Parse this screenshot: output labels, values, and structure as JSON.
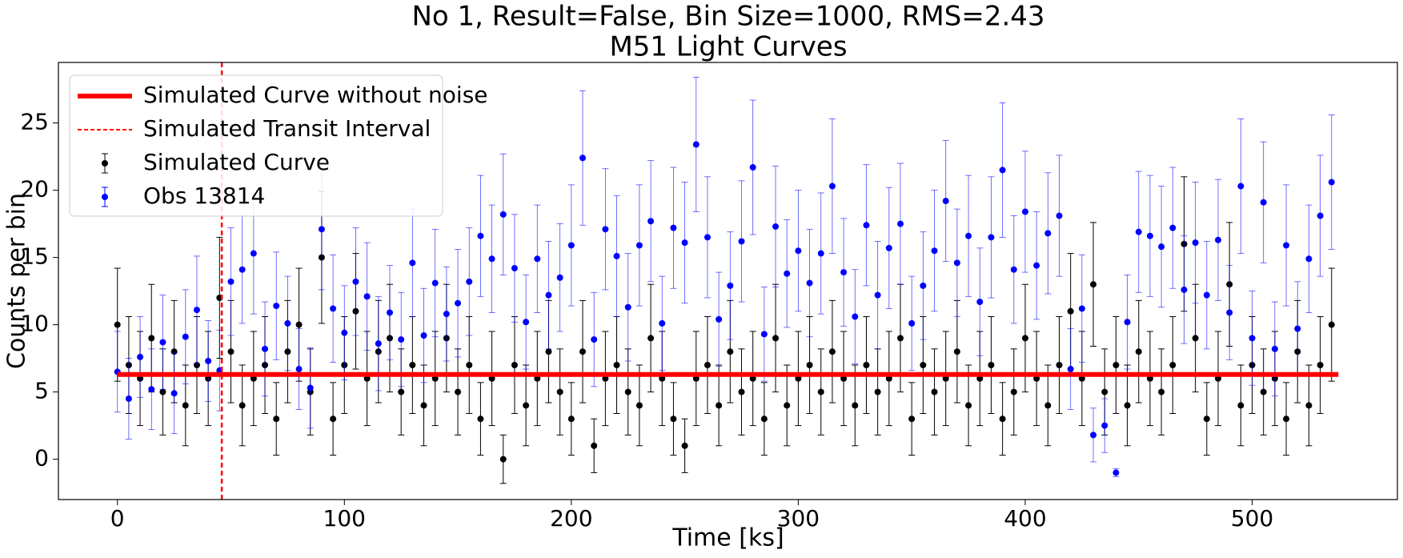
{
  "chart_data": {
    "type": "errorbar",
    "title": "No 1, Result=False, Bin Size=1000, RMS=2.43",
    "subtitle": "M51 Light Curves",
    "xlabel": "Time [ks]",
    "ylabel": "Counts per bin",
    "xlim": [
      -26,
      564
    ],
    "ylim": [
      -3,
      29.5
    ],
    "xticks": [
      0,
      100,
      200,
      300,
      400,
      500
    ],
    "yticks": [
      0,
      5,
      10,
      15,
      20,
      25
    ],
    "legend": "upper left",
    "x": [
      0,
      5,
      10,
      15,
      20,
      25,
      30,
      35,
      40,
      45,
      50,
      55,
      60,
      65,
      70,
      75,
      80,
      85,
      90,
      95,
      100,
      105,
      110,
      115,
      120,
      125,
      130,
      135,
      140,
      145,
      150,
      155,
      160,
      165,
      170,
      175,
      180,
      185,
      190,
      195,
      200,
      205,
      210,
      215,
      220,
      225,
      230,
      235,
      240,
      245,
      250,
      255,
      260,
      265,
      270,
      275,
      280,
      285,
      290,
      295,
      300,
      305,
      310,
      315,
      320,
      325,
      330,
      335,
      340,
      345,
      350,
      355,
      360,
      365,
      370,
      375,
      380,
      385,
      390,
      395,
      400,
      405,
      410,
      415,
      420,
      425,
      430,
      435,
      440,
      445,
      450,
      455,
      460,
      465,
      470,
      475,
      480,
      485,
      490,
      495,
      500,
      505,
      510,
      515,
      520,
      525,
      530,
      535
    ],
    "series": [
      {
        "name": "Simulated Curve without noise",
        "style": "line",
        "color": "#ff0000",
        "x": [
          0,
          538
        ],
        "values": [
          6.3,
          6.3
        ]
      },
      {
        "name": "Simulated Curve",
        "style": "errorbar",
        "color": "#000000",
        "values": [
          10,
          7,
          6,
          9,
          5,
          8,
          4,
          7,
          6,
          12,
          8,
          4,
          6,
          7,
          3,
          8,
          10,
          5,
          15,
          3,
          7,
          11,
          6,
          8,
          9,
          5,
          7,
          4,
          6,
          9,
          5,
          7,
          3,
          6,
          0,
          7,
          4,
          6,
          8,
          5,
          3,
          8,
          1,
          6,
          7,
          5,
          4,
          9,
          6,
          3,
          1,
          6,
          7,
          4,
          8,
          5,
          6,
          3,
          9,
          4,
          6,
          7,
          5,
          8,
          6,
          4,
          7,
          5,
          6,
          9,
          3,
          7,
          5,
          6,
          8,
          4,
          6,
          7,
          3,
          5,
          9,
          6,
          4,
          7,
          11,
          6,
          13,
          5,
          7,
          4,
          8,
          6,
          5,
          7,
          16,
          9,
          3,
          6,
          13,
          4,
          7,
          5,
          6,
          3,
          8,
          4,
          7,
          10
        ],
        "errors": [
          4.2,
          3.6,
          3.5,
          4,
          3.2,
          3.8,
          3,
          3.6,
          3.5,
          4.5,
          3.8,
          3,
          3.5,
          3.6,
          2.7,
          3.8,
          4.2,
          3.2,
          4.9,
          2.7,
          3.6,
          4.3,
          3.5,
          3.8,
          4,
          3.2,
          3.6,
          3,
          3.5,
          4,
          3.2,
          3.6,
          2.7,
          3.5,
          1.8,
          3.6,
          3,
          3.5,
          3.8,
          3.2,
          2.7,
          3.8,
          2,
          3.5,
          3.6,
          3.2,
          3,
          4,
          3.5,
          2.7,
          2,
          3.5,
          3.6,
          3,
          3.8,
          3.2,
          3.5,
          2.7,
          4,
          3,
          3.5,
          3.6,
          3.2,
          3.8,
          3.5,
          3,
          3.6,
          3.2,
          3.5,
          4,
          2.7,
          3.6,
          3.2,
          3.5,
          3.8,
          3,
          3.5,
          3.6,
          2.7,
          3.2,
          4,
          3.5,
          3,
          3.6,
          4.3,
          3.5,
          4.6,
          3.2,
          3.6,
          3,
          3.8,
          3.5,
          3.2,
          3.6,
          5,
          4,
          2.7,
          3.5,
          4.6,
          3,
          3.6,
          3.2,
          3.5,
          2.7,
          3.8,
          3,
          3.6,
          4.2
        ]
      },
      {
        "name": "Obs 13814",
        "style": "errorbar",
        "color": "#0000ff",
        "values": [
          6.5,
          4.5,
          7.6,
          5.2,
          8.7,
          4.9,
          9.1,
          11.1,
          7.3,
          6.6,
          13.2,
          14.1,
          15.3,
          8.2,
          11.4,
          10.1,
          6.7,
          5.3,
          17.1,
          11.2,
          9.4,
          13.2,
          12.1,
          8.6,
          10.9,
          8.9,
          14.6,
          9.2,
          13.1,
          10.8,
          11.6,
          13.2,
          16.6,
          14.9,
          18.2,
          14.2,
          10.2,
          14.9,
          12.2,
          13.5,
          15.9,
          22.4,
          8.9,
          17.1,
          15.1,
          11.3,
          15.9,
          17.7,
          10.1,
          17.2,
          16.1,
          23.4,
          16.5,
          10.4,
          12.9,
          16.2,
          21.7,
          9.3,
          17.3,
          13.8,
          15.5,
          13.1,
          15.3,
          20.3,
          13.9,
          10.6,
          17.4,
          12.2,
          15.7,
          17.5,
          10.1,
          12.9,
          15.5,
          19.2,
          14.6,
          16.6,
          11.7,
          16.5,
          21.5,
          14.1,
          18.4,
          14.4,
          16.8,
          18.1,
          6.7,
          11.2,
          1.8,
          2.5,
          -1,
          10.2,
          16.9,
          16.6,
          15.8,
          17.2,
          12.6,
          16.1,
          12.2,
          16.3,
          10.9,
          20.3,
          9.0,
          19.1,
          8.2,
          15.9,
          9.7,
          14.9,
          18.1,
          20.6
        ],
        "errors": [
          3,
          3,
          3,
          3,
          3.5,
          3,
          3.5,
          4,
          3,
          3,
          4,
          4,
          4.5,
          3.5,
          4,
          3.5,
          3,
          3,
          4.5,
          4,
          3.5,
          4,
          4,
          3.5,
          3.5,
          3.5,
          4,
          3.5,
          4,
          3.5,
          4,
          4,
          4.5,
          4,
          4.5,
          4,
          3.5,
          4,
          4,
          4,
          4.5,
          5,
          3.5,
          4.5,
          4.5,
          4,
          4.5,
          4.5,
          3.5,
          4.5,
          4.5,
          5,
          4.5,
          3.5,
          4,
          4.5,
          5,
          3.5,
          4.5,
          4,
          4.5,
          4,
          4.5,
          5,
          4,
          3.5,
          4.5,
          4,
          4.5,
          4.5,
          3.5,
          4,
          4.5,
          4.5,
          4,
          4.5,
          4,
          4.5,
          5,
          4,
          4.5,
          4,
          4.5,
          4.5,
          3,
          4,
          2,
          2,
          0.3,
          3.5,
          4.5,
          4.5,
          4.5,
          4.5,
          4,
          4.5,
          4,
          4.5,
          3.5,
          5,
          3.5,
          4.5,
          3.5,
          4.5,
          3.5,
          4,
          4.5,
          5
        ]
      }
    ],
    "vlines": [
      {
        "name": "Simulated Transit Interval",
        "color": "#ff0000",
        "x": 46
      }
    ]
  }
}
